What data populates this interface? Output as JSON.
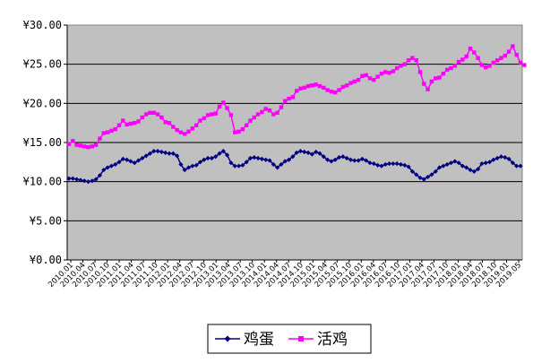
{
  "chart_data": {
    "type": "line",
    "title": "",
    "xlabel": "",
    "ylabel": "",
    "ylim": [
      0,
      30
    ],
    "yticks": [
      "¥0.00",
      "¥5.00",
      "¥10.00",
      "¥15.00",
      "¥20.00",
      "¥25.00",
      "¥30.00"
    ],
    "grid": "horizontal",
    "plot_background": "#c0c0c0",
    "legend_position": "bottom",
    "x_ticks": [
      "2010.01",
      "2010.04",
      "2010.07",
      "2010.10",
      "2011.01",
      "2011.04",
      "2011.07",
      "2011.10",
      "2012.01",
      "2012.04",
      "2012.07",
      "2012.10",
      "2013.01",
      "2013.04",
      "2013.07",
      "2013.10",
      "2014.01",
      "2014.04",
      "2014.07",
      "2014.10",
      "2015.01",
      "2015.04",
      "2015.07",
      "2015.10",
      "2016.01",
      "2016.04",
      "2016.07",
      "2016.10",
      "2017.01",
      "2017.04",
      "2017.07",
      "2017.10",
      "2018.01",
      "2018.04",
      "2018.07",
      "2018.10",
      "2019.01",
      "2019.05"
    ],
    "series": [
      {
        "name": "鸡蛋",
        "color": "#000080",
        "marker": "diamond",
        "values": [
          10.4,
          10.4,
          10.3,
          10.2,
          10.1,
          10.0,
          10.1,
          10.3,
          10.8,
          11.5,
          11.8,
          12.0,
          12.2,
          12.5,
          12.9,
          12.8,
          12.6,
          12.4,
          12.7,
          13.0,
          13.3,
          13.6,
          13.9,
          13.9,
          13.8,
          13.7,
          13.6,
          13.6,
          13.3,
          12.2,
          11.5,
          11.8,
          12.0,
          12.1,
          12.5,
          12.8,
          13.0,
          13.0,
          13.2,
          13.6,
          13.9,
          13.4,
          12.4,
          12.0,
          12.0,
          12.1,
          12.5,
          13.0,
          13.1,
          13.0,
          12.9,
          12.8,
          12.7,
          12.2,
          11.8,
          12.2,
          12.6,
          12.8,
          13.2,
          13.7,
          13.9,
          13.8,
          13.7,
          13.5,
          13.8,
          13.6,
          13.2,
          12.8,
          12.6,
          12.8,
          13.1,
          13.2,
          13.0,
          12.8,
          12.7,
          12.7,
          12.9,
          12.7,
          12.4,
          12.3,
          12.1,
          12.0,
          12.2,
          12.3,
          12.3,
          12.3,
          12.2,
          12.1,
          11.9,
          11.3,
          10.9,
          10.5,
          10.3,
          10.6,
          10.9,
          11.3,
          11.8,
          12.0,
          12.2,
          12.4,
          12.6,
          12.4,
          12.0,
          11.8,
          11.5,
          11.3,
          11.6,
          12.3,
          12.4,
          12.5,
          12.8,
          13.0,
          13.2,
          13.1,
          12.9,
          12.4,
          12.0,
          12.0
        ]
      },
      {
        "name": "活鸡",
        "color": "#ff00ff",
        "marker": "square",
        "values": [
          14.8,
          15.2,
          14.7,
          14.6,
          14.5,
          14.4,
          14.5,
          14.7,
          15.5,
          16.2,
          16.3,
          16.5,
          16.7,
          17.2,
          17.8,
          17.3,
          17.4,
          17.5,
          17.7,
          18.2,
          18.6,
          18.8,
          18.8,
          18.6,
          18.2,
          17.6,
          17.5,
          17.0,
          16.6,
          16.3,
          16.1,
          16.4,
          16.8,
          17.2,
          17.8,
          18.1,
          18.5,
          18.6,
          18.7,
          19.6,
          20.1,
          19.4,
          18.5,
          16.3,
          16.4,
          16.7,
          17.2,
          17.8,
          18.2,
          18.6,
          18.9,
          19.3,
          19.1,
          18.6,
          18.8,
          19.5,
          20.3,
          20.6,
          20.8,
          21.6,
          21.9,
          22.0,
          22.2,
          22.3,
          22.4,
          22.2,
          22.0,
          21.7,
          21.5,
          21.4,
          21.7,
          22.1,
          22.3,
          22.6,
          22.8,
          23.0,
          23.5,
          23.6,
          23.2,
          23.0,
          23.4,
          23.8,
          24.0,
          23.9,
          24.1,
          24.5,
          24.8,
          25.0,
          25.5,
          25.8,
          25.5,
          24.0,
          22.5,
          21.8,
          22.8,
          23.2,
          23.3,
          23.8,
          24.3,
          24.5,
          24.8,
          25.3,
          25.6,
          26.0,
          27.0,
          26.5,
          25.8,
          24.9,
          24.6,
          24.8,
          25.2,
          25.5,
          25.8,
          26.1,
          26.6,
          27.3,
          26.2,
          25.2,
          24.9
        ]
      }
    ]
  }
}
